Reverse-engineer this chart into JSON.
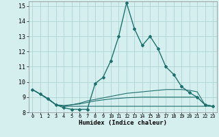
{
  "xlabel": "Humidex (Indice chaleur)",
  "xlim": [
    -0.5,
    23.5
  ],
  "ylim": [
    8,
    15.3
  ],
  "yticks": [
    8,
    9,
    10,
    11,
    12,
    13,
    14,
    15
  ],
  "xticks": [
    0,
    1,
    2,
    3,
    4,
    5,
    6,
    7,
    8,
    9,
    10,
    11,
    12,
    13,
    14,
    15,
    16,
    17,
    18,
    19,
    20,
    21,
    22,
    23
  ],
  "background_color": "#d5efee",
  "grid_color": "#aed4d3",
  "line_color": "#1e7070",
  "series": [
    {
      "x": [
        0,
        1,
        2,
        3,
        4,
        5,
        6,
        7,
        8,
        9,
        10,
        11,
        12,
        13,
        14,
        15,
        16,
        17,
        18,
        19,
        20,
        21,
        22,
        23
      ],
      "y": [
        9.5,
        9.2,
        8.9,
        8.5,
        8.3,
        8.2,
        8.2,
        8.2,
        9.9,
        10.3,
        11.4,
        13.0,
        15.2,
        13.5,
        12.4,
        13.0,
        12.2,
        11.0,
        10.5,
        9.7,
        9.3,
        9.0,
        8.5,
        8.4
      ],
      "has_marker": true,
      "markersize": 2.0,
      "linewidth": 1.0
    },
    {
      "x": [
        0,
        1,
        2,
        3,
        4,
        5,
        6,
        7,
        8,
        9,
        10,
        11,
        12,
        13,
        14,
        15,
        16,
        17,
        18,
        19,
        20,
        21,
        22,
        23
      ],
      "y": [
        9.5,
        9.2,
        8.9,
        8.5,
        8.45,
        8.5,
        8.6,
        8.75,
        8.85,
        8.95,
        9.05,
        9.15,
        9.25,
        9.3,
        9.35,
        9.4,
        9.45,
        9.5,
        9.5,
        9.5,
        9.45,
        9.35,
        8.5,
        8.4
      ],
      "has_marker": false,
      "linewidth": 0.8
    },
    {
      "x": [
        0,
        1,
        2,
        3,
        4,
        5,
        6,
        7,
        8,
        9,
        10,
        11,
        12,
        13,
        14,
        15,
        16,
        17,
        18,
        19,
        20,
        21,
        22,
        23
      ],
      "y": [
        9.5,
        9.2,
        8.88,
        8.5,
        8.4,
        8.5,
        8.55,
        8.65,
        8.75,
        8.82,
        8.88,
        8.92,
        8.96,
        8.98,
        9.0,
        9.0,
        9.0,
        9.0,
        9.0,
        9.0,
        9.0,
        9.0,
        8.5,
        8.4
      ],
      "has_marker": false,
      "linewidth": 0.8
    },
    {
      "x": [
        0,
        1,
        2,
        3,
        4,
        5,
        6,
        7,
        8,
        9,
        10,
        11,
        12,
        13,
        14,
        15,
        16,
        17,
        18,
        19,
        20,
        21,
        22,
        23
      ],
      "y": [
        9.5,
        9.2,
        8.85,
        8.5,
        8.4,
        8.4,
        8.4,
        8.4,
        8.4,
        8.4,
        8.4,
        8.4,
        8.4,
        8.4,
        8.4,
        8.4,
        8.4,
        8.4,
        8.4,
        8.4,
        8.4,
        8.4,
        8.4,
        8.4
      ],
      "has_marker": false,
      "linewidth": 0.8
    }
  ]
}
